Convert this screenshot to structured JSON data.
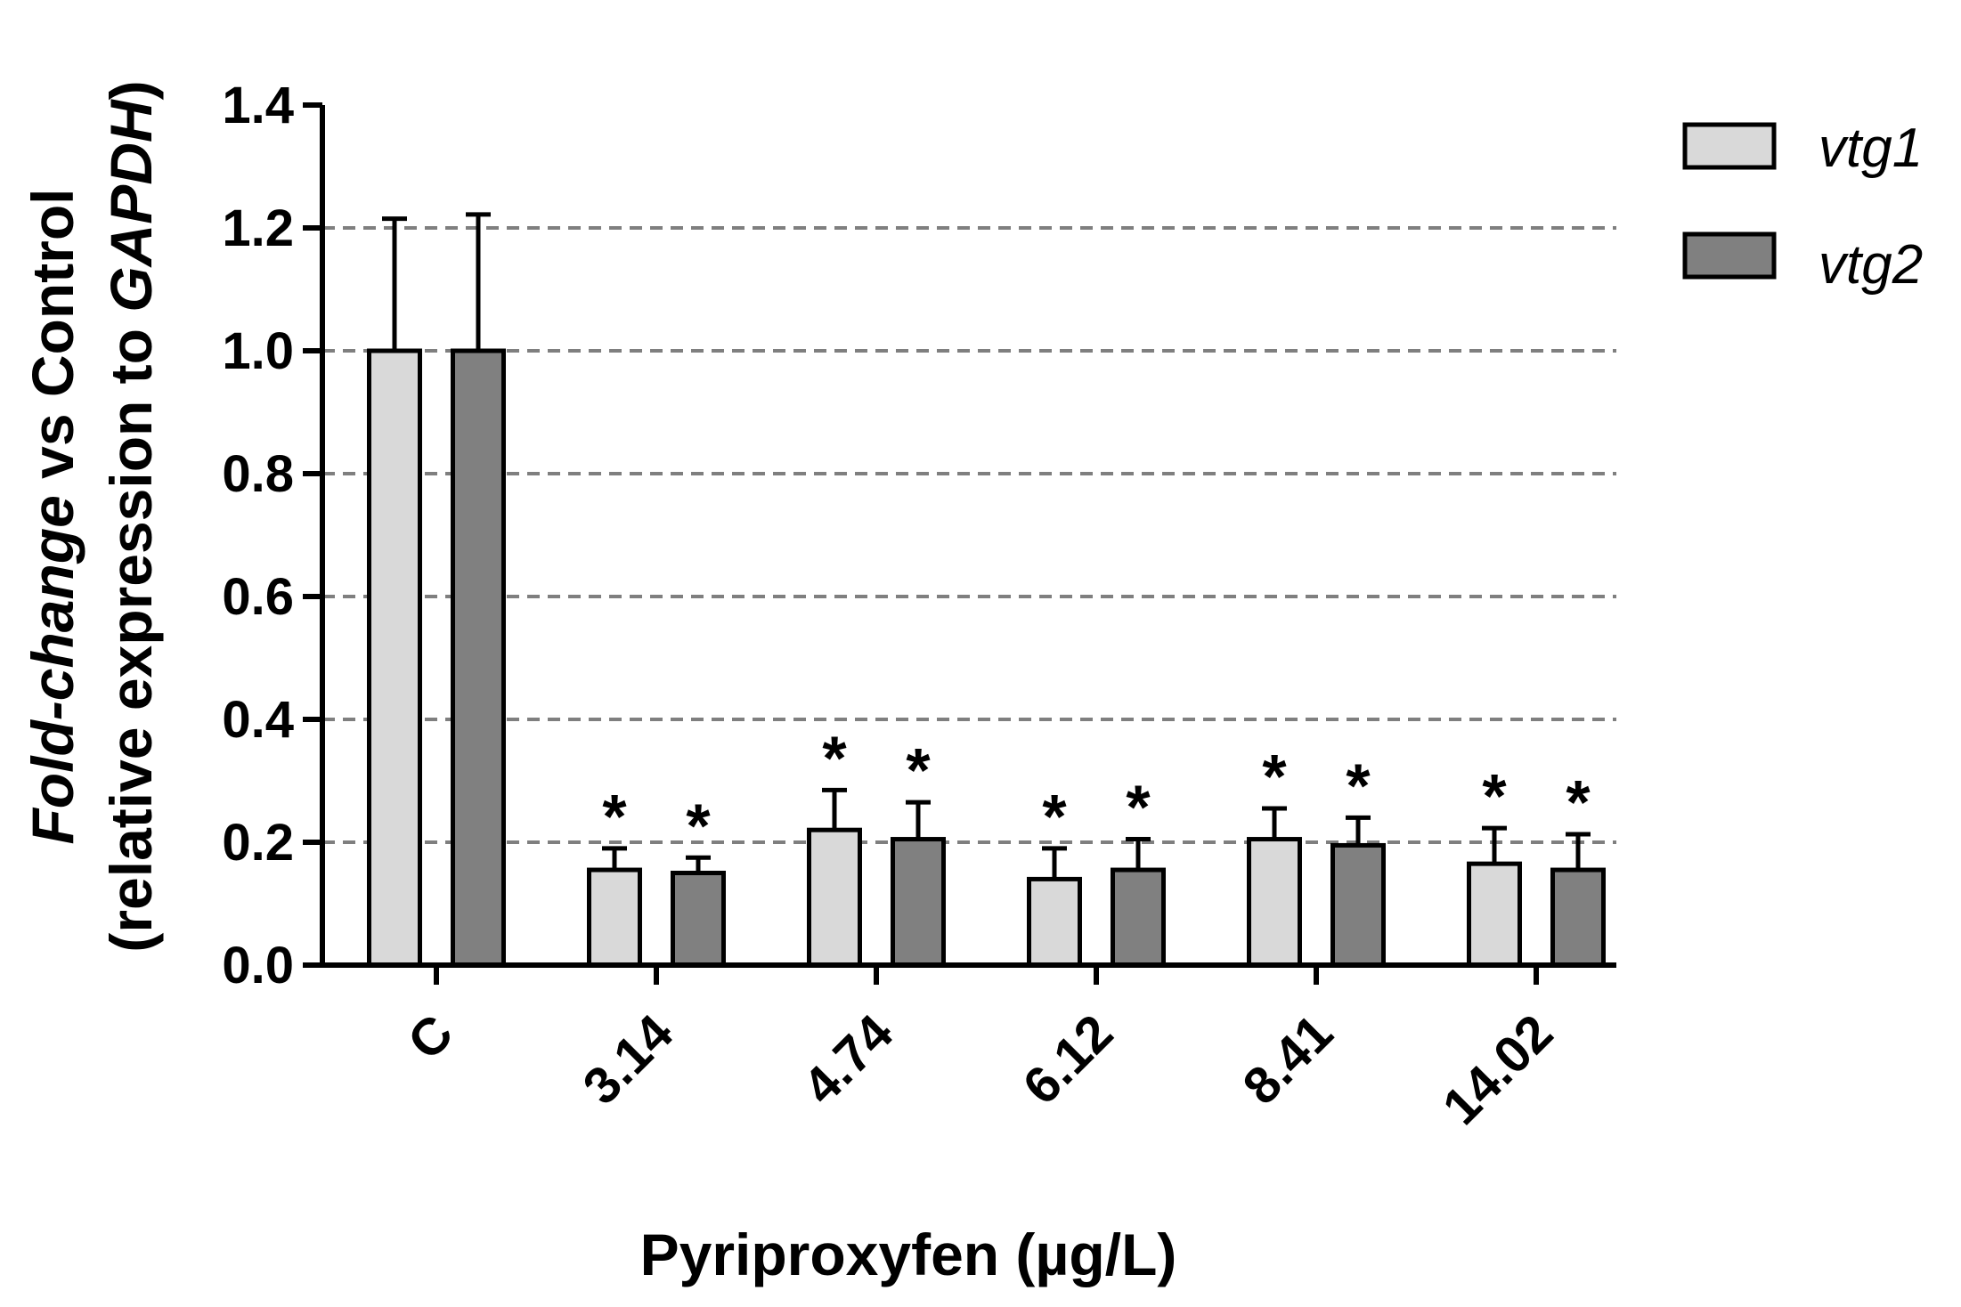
{
  "chart_data": {
    "type": "bar",
    "title": "",
    "xlabel": "Pyriproxyfen (µg/L)",
    "ylabel_line1_italic": "Fold-change",
    "ylabel_line1_rest": " vs Control",
    "ylabel_line2_start": "(relative expression to ",
    "ylabel_line2_italic": "GAPDH",
    "ylabel_line2_end": ")",
    "categories": [
      "C",
      "3.14",
      "4.74",
      "6.12",
      "8.41",
      "14.02"
    ],
    "ylim": [
      0,
      1.4
    ],
    "yticks": [
      0.0,
      0.2,
      0.4,
      0.6,
      0.8,
      1.0,
      1.2,
      1.4
    ],
    "ytick_labels": [
      "0.0",
      "0.2",
      "0.4",
      "0.6",
      "0.8",
      "1.0",
      "1.2",
      "1.4"
    ],
    "grid_values": [
      0.2,
      0.4,
      0.6,
      0.8,
      1.0,
      1.2
    ],
    "grid": true,
    "legend_position": "top-right",
    "significance_marker": "*",
    "series": [
      {
        "name": "vtg1",
        "color": "#d9d9d9",
        "values": [
          1.0,
          0.155,
          0.22,
          0.14,
          0.205,
          0.165
        ],
        "errors": [
          0.215,
          0.035,
          0.065,
          0.05,
          0.05,
          0.058
        ],
        "significant": [
          false,
          true,
          true,
          true,
          true,
          true
        ]
      },
      {
        "name": "vtg2",
        "color": "#808080",
        "values": [
          1.0,
          0.15,
          0.205,
          0.155,
          0.195,
          0.155
        ],
        "errors": [
          0.222,
          0.025,
          0.06,
          0.05,
          0.045,
          0.058
        ],
        "significant": [
          false,
          true,
          true,
          true,
          true,
          true
        ]
      }
    ]
  }
}
